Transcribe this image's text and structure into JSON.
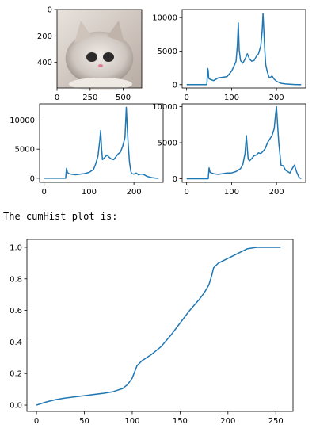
{
  "caption": "The cumHist plot is:",
  "image_panel": {
    "subject": "photo of a grey-and-white kitten",
    "x_ticks": [
      "0",
      "250",
      "500"
    ],
    "y_ticks": [
      "0",
      "200",
      "400"
    ]
  },
  "chart_data": [
    {
      "type": "line",
      "x": [
        0,
        45,
        47,
        48,
        49,
        50,
        52,
        60,
        70,
        80,
        90,
        100,
        105,
        110,
        113,
        115,
        117,
        120,
        125,
        130,
        135,
        140,
        145,
        150,
        155,
        160,
        165,
        168,
        170,
        172,
        174,
        176,
        178,
        180,
        183,
        185,
        190,
        195,
        200,
        210,
        220,
        230,
        240,
        250,
        255
      ],
      "y": [
        0,
        0,
        2400,
        2100,
        1000,
        900,
        800,
        600,
        1000,
        1100,
        1200,
        2000,
        2700,
        3500,
        6000,
        9200,
        5200,
        3600,
        3200,
        3800,
        4600,
        3800,
        3500,
        3600,
        4200,
        4600,
        5800,
        8000,
        10600,
        8000,
        5000,
        3000,
        2400,
        1800,
        1200,
        1000,
        1300,
        800,
        500,
        200,
        100,
        50,
        20,
        0,
        0
      ],
      "xlim": [
        -10,
        265
      ],
      "ylim": [
        -500,
        11200
      ],
      "x_ticks": [
        0,
        100,
        200
      ],
      "y_ticks": [
        0,
        5000,
        10000
      ],
      "title": "",
      "xlabel": "",
      "ylabel": ""
    },
    {
      "type": "line",
      "x": [
        0,
        48,
        50,
        52,
        55,
        60,
        70,
        80,
        90,
        100,
        110,
        115,
        120,
        124,
        126,
        128,
        130,
        135,
        140,
        145,
        150,
        155,
        160,
        165,
        170,
        175,
        180,
        183,
        185,
        187,
        190,
        193,
        195,
        200,
        205,
        210,
        215,
        220,
        230,
        240,
        250,
        255
      ],
      "y": [
        0,
        0,
        1700,
        1000,
        800,
        700,
        600,
        700,
        800,
        1000,
        1500,
        2500,
        3800,
        6500,
        8200,
        5000,
        3200,
        3600,
        4000,
        3600,
        3300,
        3200,
        3700,
        4200,
        4500,
        5500,
        7000,
        12200,
        9000,
        6000,
        2800,
        1200,
        800,
        700,
        900,
        600,
        700,
        700,
        300,
        100,
        0,
        0
      ],
      "xlim": [
        -10,
        265
      ],
      "ylim": [
        -700,
        12800
      ],
      "x_ticks": [
        0,
        100,
        200
      ],
      "y_ticks": [
        0,
        5000,
        10000
      ],
      "title": "",
      "xlabel": "",
      "ylabel": ""
    },
    {
      "type": "line",
      "x": [
        0,
        48,
        50,
        52,
        55,
        60,
        70,
        80,
        90,
        100,
        110,
        120,
        125,
        130,
        133,
        135,
        137,
        140,
        145,
        150,
        155,
        160,
        165,
        170,
        175,
        180,
        185,
        190,
        195,
        198,
        200,
        203,
        205,
        210,
        215,
        220,
        225,
        230,
        235,
        240,
        245,
        250,
        255
      ],
      "y": [
        0,
        0,
        1500,
        900,
        800,
        700,
        600,
        700,
        800,
        800,
        1000,
        1400,
        2000,
        3500,
        6000,
        4200,
        2700,
        2500,
        2800,
        3200,
        3300,
        3600,
        3500,
        3800,
        4200,
        5000,
        5500,
        6000,
        7000,
        9000,
        10000,
        7000,
        5000,
        1900,
        1800,
        1200,
        1000,
        800,
        1400,
        1900,
        900,
        200,
        0
      ],
      "xlim": [
        -10,
        265
      ],
      "ylim": [
        -500,
        10400
      ],
      "x_ticks": [
        0,
        100,
        200
      ],
      "y_ticks": [
        0,
        5000,
        10000
      ],
      "title": "",
      "xlabel": "",
      "ylabel": ""
    },
    {
      "type": "line",
      "x": [
        0,
        10,
        20,
        30,
        50,
        70,
        80,
        85,
        90,
        95,
        100,
        105,
        110,
        120,
        130,
        140,
        150,
        160,
        170,
        175,
        180,
        183,
        185,
        190,
        200,
        210,
        220,
        230,
        240,
        250,
        255
      ],
      "y": [
        0.0,
        0.02,
        0.035,
        0.045,
        0.06,
        0.075,
        0.085,
        0.095,
        0.105,
        0.13,
        0.17,
        0.25,
        0.28,
        0.32,
        0.37,
        0.44,
        0.52,
        0.6,
        0.67,
        0.71,
        0.76,
        0.82,
        0.87,
        0.9,
        0.93,
        0.96,
        0.99,
        1.0,
        1.0,
        1.0,
        1.0
      ],
      "xlim": [
        -10,
        268
      ],
      "ylim": [
        -0.04,
        1.05
      ],
      "x_ticks": [
        0,
        50,
        100,
        150,
        200,
        250
      ],
      "y_ticks": [
        0.0,
        0.2,
        0.4,
        0.6,
        0.8,
        1.0
      ],
      "title": "",
      "xlabel": "",
      "ylabel": ""
    }
  ]
}
